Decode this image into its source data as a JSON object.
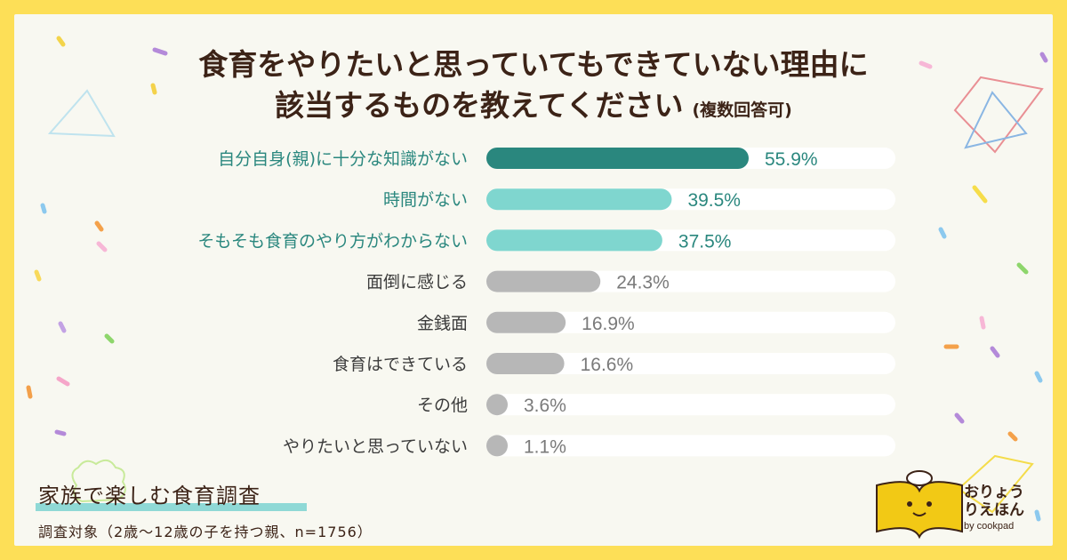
{
  "title_line1": "食育をやりたいと思っていてもできていない理由に",
  "title_line2": "該当するものを教えてください",
  "title_note": "(複数回答可)",
  "survey_title": "家族で楽しむ食育調査",
  "survey_target": "調査対象（2歳〜12歳の子を持つ親、n=1756）",
  "logo": {
    "brand": "おりょうりえほん",
    "by": "by cookpad"
  },
  "colors": {
    "dark_teal": "#2a877e",
    "light_teal": "#7fd6cf",
    "gray": "#b7b7b7",
    "track": "#ffffff",
    "teal_text": "#2a877e",
    "gray_text": "#3c3c3c",
    "gray_value": "#7a7a7a"
  },
  "chart_data": {
    "type": "bar",
    "orientation": "horizontal",
    "unit": "%",
    "xlim": [
      0,
      100
    ],
    "grid": false,
    "categories": [
      "自分自身(親)に十分な知識がない",
      "時間がない",
      "そもそも食育のやり方がわからない",
      "面倒に感じる",
      "金銭面",
      "食育はできている",
      "その他",
      "やりたいと思っていない"
    ],
    "values": [
      55.9,
      39.5,
      37.5,
      24.3,
      16.9,
      16.6,
      3.6,
      1.1
    ],
    "value_labels": [
      "55.9%",
      "39.5%",
      "37.5%",
      "24.3%",
      "16.9%",
      "16.6%",
      "3.6%",
      "1.1%"
    ],
    "bar_styles": [
      "dark",
      "light",
      "light",
      "gray",
      "gray",
      "gray",
      "gray",
      "gray"
    ]
  }
}
